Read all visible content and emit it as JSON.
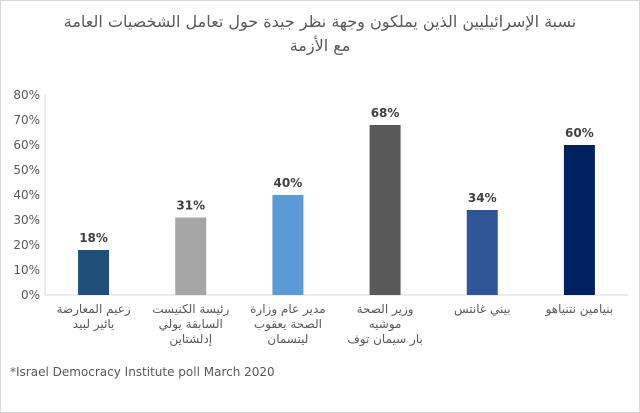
{
  "chart_data": {
    "type": "bar",
    "title_line1": "نسبة الإسرائيليين الذين يملكون وجهة نظر جيدة حول تعامل الشخصيات العامة",
    "title_line2": "مع الأزمة",
    "categories": [
      "زعيم المعارضة\nيائير لبيد",
      "رئيسة الكنيست\nالسابقة يولي\nإدلشتاين",
      "مدير عام وزارة\nالصحة يعقوب\nليتسمان",
      "وزير الصحة موشيه\nبار سيمان توف",
      "بيني غانتس",
      "بنيامين نتنياهو"
    ],
    "values": [
      18,
      31,
      40,
      68,
      34,
      60
    ],
    "data_labels": [
      "18%",
      "31%",
      "40%",
      "68%",
      "34%",
      "60%"
    ],
    "colors": [
      "#1f4e79",
      "#a6a6a6",
      "#5b9bd5",
      "#595959",
      "#2f5597",
      "#002060"
    ],
    "ylim": [
      0,
      80
    ],
    "yticks": [
      0,
      10,
      20,
      30,
      40,
      50,
      60,
      70,
      80
    ],
    "ytick_labels": [
      "0%",
      "10%",
      "20%",
      "30%",
      "40%",
      "50%",
      "60%",
      "70%",
      "80%"
    ],
    "grid": false,
    "legend": "none",
    "xlabel": "",
    "ylabel": ""
  },
  "footnote": "*Israel Democracy Institute poll March 2020"
}
